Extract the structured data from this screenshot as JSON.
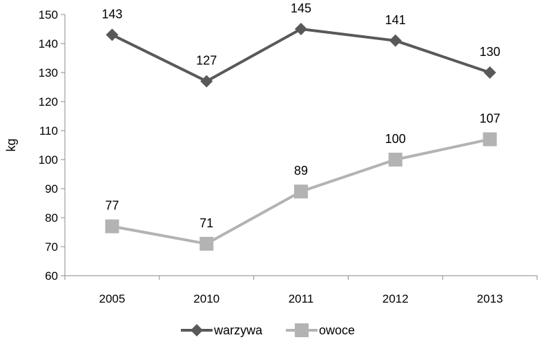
{
  "chart_data": {
    "type": "line",
    "categories": [
      "2005",
      "2010",
      "2011",
      "2012",
      "2013"
    ],
    "series": [
      {
        "name": "warzywa",
        "values": [
          143,
          127,
          145,
          141,
          130
        ],
        "color": "#595959",
        "marker": "diamond"
      },
      {
        "name": "owoce",
        "values": [
          77,
          71,
          89,
          100,
          107
        ],
        "color": "#b3b3b3",
        "marker": "square"
      }
    ],
    "ylabel": "kg",
    "ylim": [
      60,
      150
    ],
    "yticks": [
      60,
      70,
      80,
      90,
      100,
      110,
      120,
      130,
      140,
      150
    ],
    "grid": false,
    "legend": "bottom-center"
  }
}
